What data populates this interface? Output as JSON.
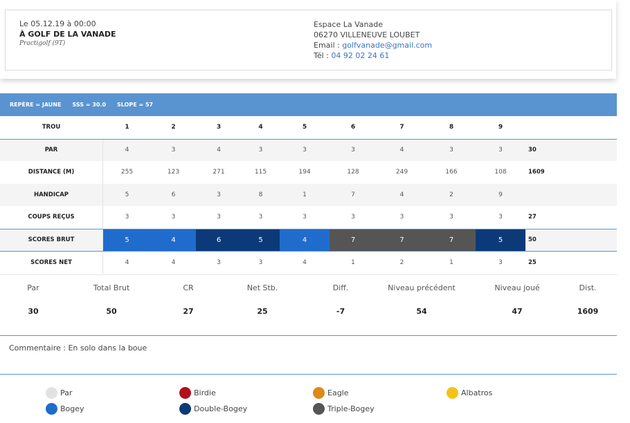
{
  "event": {
    "date": "Le 05.12.19 à 00:00",
    "title": "À GOLF DE LA VANADE",
    "subtitle": "Practigolf (9T)"
  },
  "address": {
    "name": "Espace La Vanade",
    "city": "06270 VILLENEUVE LOUBET",
    "email_label": "Email : ",
    "email": "golfvanade@gmail.com",
    "phone_label": "Tél : ",
    "phone": "04 92 02 24 61"
  },
  "course_bar": {
    "repere": "REPÈRE = JAUNE",
    "sss": "SSS = 30.0",
    "slope": "SLOPE = 57"
  },
  "scorecard": {
    "header_label": "TROU",
    "holes": [
      "1",
      "2",
      "3",
      "4",
      "5",
      "6",
      "7",
      "8",
      "9"
    ],
    "rows": [
      {
        "label": "PAR",
        "values": [
          "4",
          "3",
          "4",
          "3",
          "3",
          "3",
          "4",
          "3",
          "3"
        ],
        "total": "30"
      },
      {
        "label": "DISTANCE (M)",
        "values": [
          "255",
          "123",
          "271",
          "115",
          "194",
          "128",
          "249",
          "166",
          "108"
        ],
        "total": "1609"
      },
      {
        "label": "HANDICAP",
        "values": [
          "5",
          "6",
          "3",
          "8",
          "1",
          "7",
          "4",
          "2",
          "9"
        ],
        "total": ""
      },
      {
        "label": "COUPS REÇUS",
        "values": [
          "3",
          "3",
          "3",
          "3",
          "3",
          "3",
          "3",
          "3",
          "3"
        ],
        "total": "27"
      },
      {
        "label": "SCORES BRUT",
        "values": [
          "5",
          "4",
          "6",
          "5",
          "4",
          "7",
          "7",
          "7",
          "5"
        ],
        "total": "50",
        "result": [
          "bogey",
          "bogey",
          "double-bogey",
          "double-bogey",
          "bogey",
          "triple-bogey",
          "triple-bogey",
          "triple-bogey",
          "double-bogey"
        ]
      },
      {
        "label": "SCORES NET",
        "values": [
          "4",
          "4",
          "3",
          "3",
          "4",
          "1",
          "2",
          "1",
          "3"
        ],
        "total": "25"
      }
    ]
  },
  "summary": [
    {
      "label": "Par",
      "value": "30"
    },
    {
      "label": "Total Brut",
      "value": "50"
    },
    {
      "label": "CR",
      "value": "27"
    },
    {
      "label": "Net Stb.",
      "value": "25"
    },
    {
      "label": "Diff.",
      "value": "-7"
    },
    {
      "label": "Niveau précédent",
      "value": "54"
    },
    {
      "label": "Niveau joué",
      "value": "47"
    },
    {
      "label": "Dist.",
      "value": "1609"
    }
  ],
  "comment": "Commentaire : En solo dans la boue",
  "legend": [
    {
      "label": "Par",
      "color": "#e2e2e2"
    },
    {
      "label": "Birdie",
      "color": "#b1101b"
    },
    {
      "label": "Eagle",
      "color": "#dd8a17"
    },
    {
      "label": "Albatros",
      "color": "#f6c21a"
    },
    {
      "label": "Bogey",
      "color": "#1f6ccc"
    },
    {
      "label": "Double-Bogey",
      "color": "#0c3a78"
    },
    {
      "label": "Triple-Bogey",
      "color": "#555555"
    }
  ],
  "colors": {
    "accent": "#5a94d0",
    "bogey": "#1f6ccc",
    "double-bogey": "#0c3a78",
    "triple-bogey": "#555555"
  }
}
